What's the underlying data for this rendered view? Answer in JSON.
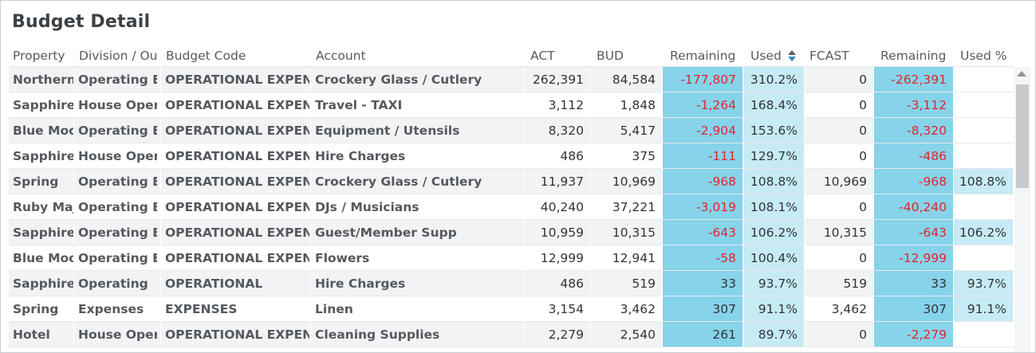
{
  "title": "Budget Detail",
  "columns": [
    "Property",
    "Division / Ou",
    "Budget Code",
    "Account",
    "ACT",
    "BUD",
    "Remaining",
    "Used",
    "FCAST",
    "Remaining",
    "Used %"
  ],
  "rows": [
    {
      "property": "Northern",
      "division": "Operating E:",
      "budget_code": "OPERATIONAL EXPEN",
      "account": "Crockery Glass / Cutlery",
      "act": "262,391",
      "bud": "84,584",
      "remaining": "-177,807",
      "used": "310.2%",
      "fcast": "0",
      "remaining2": "-262,391",
      "used_pct": ""
    },
    {
      "property": "Sapphire",
      "division": "House Opera",
      "budget_code": "OPERATIONAL EXPEN",
      "account": "Travel - TAXI",
      "act": "3,112",
      "bud": "1,848",
      "remaining": "-1,264",
      "used": "168.4%",
      "fcast": "0",
      "remaining2": "-3,112",
      "used_pct": ""
    },
    {
      "property": "Blue Moo",
      "division": "Operating E:",
      "budget_code": "OPERATIONAL EXPEN",
      "account": "Equipment / Utensils",
      "act": "8,320",
      "bud": "5,417",
      "remaining": "-2,904",
      "used": "153.6%",
      "fcast": "0",
      "remaining2": "-8,320",
      "used_pct": ""
    },
    {
      "property": "Sapphire",
      "division": "House Opera",
      "budget_code": "OPERATIONAL EXPEN",
      "account": "Hire Charges",
      "act": "486",
      "bud": "375",
      "remaining": "-111",
      "used": "129.7%",
      "fcast": "0",
      "remaining2": "-486",
      "used_pct": ""
    },
    {
      "property": "Spring",
      "division": "Operating E:",
      "budget_code": "OPERATIONAL EXPEN",
      "account": "Crockery Glass / Cutlery",
      "act": "11,937",
      "bud": "10,969",
      "remaining": "-968",
      "used": "108.8%",
      "fcast": "10,969",
      "remaining2": "-968",
      "used_pct": "108.8%"
    },
    {
      "property": "Ruby Maj",
      "division": "Operating E:",
      "budget_code": "OPERATIONAL EXPEN",
      "account": "DJs / Musicians",
      "act": "40,240",
      "bud": "37,221",
      "remaining": "-3,019",
      "used": "108.1%",
      "fcast": "0",
      "remaining2": "-40,240",
      "used_pct": ""
    },
    {
      "property": "Sapphire",
      "division": "Operating E:",
      "budget_code": "OPERATIONAL EXPEN",
      "account": "Guest/Member Supp",
      "act": "10,959",
      "bud": "10,315",
      "remaining": "-643",
      "used": "106.2%",
      "fcast": "10,315",
      "remaining2": "-643",
      "used_pct": "106.2%"
    },
    {
      "property": "Blue Moo",
      "division": "Operating E:",
      "budget_code": "OPERATIONAL EXPEN",
      "account": "Flowers",
      "act": "12,999",
      "bud": "12,941",
      "remaining": "-58",
      "used": "100.4%",
      "fcast": "0",
      "remaining2": "-12,999",
      "used_pct": ""
    },
    {
      "property": "Sapphire",
      "division": "Operating",
      "budget_code": "OPERATIONAL",
      "account": "Hire Charges",
      "act": "486",
      "bud": "519",
      "remaining": "33",
      "used": "93.7%",
      "fcast": "519",
      "remaining2": "33",
      "used_pct": "93.7%"
    },
    {
      "property": "Spring",
      "division": "Expenses",
      "budget_code": "EXPENSES",
      "account": "Linen",
      "act": "3,154",
      "bud": "3,462",
      "remaining": "307",
      "used": "91.1%",
      "fcast": "3,462",
      "remaining2": "307",
      "used_pct": "91.1%"
    },
    {
      "property": "Hotel",
      "division": "House Opera",
      "budget_code": "OPERATIONAL EXPEN",
      "account": "Cleaning Supplies",
      "act": "2,279",
      "bud": "2,540",
      "remaining": "261",
      "used": "89.7%",
      "fcast": "0",
      "remaining2": "-2,279",
      "used_pct": ""
    }
  ],
  "colors": {
    "remaining_bg": "#87d3ea",
    "used_bg": "#c7ebf5",
    "negative": "#e0252f",
    "row_alt": "#f2f3f5"
  },
  "icons": {
    "sort": "sort-up-down-icon",
    "scroll": "scroll-up-icon"
  }
}
